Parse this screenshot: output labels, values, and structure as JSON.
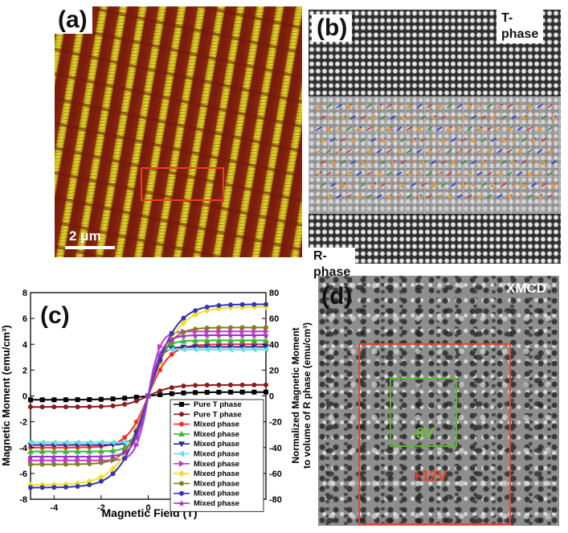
{
  "panel_a": {
    "label": "(a)",
    "scale_bar": "2 μm"
  },
  "panel_b": {
    "label": "(b)",
    "top_tag": "T-phase",
    "bottom_tag": "R-phase"
  },
  "panel_c": {
    "label": "(c)",
    "chart_data": {
      "type": "line",
      "xlabel": "Magnetic Field (T)",
      "ylabel": "Magnetic Moment (emu/cm³)",
      "y2label_line1": "Normalized Magnetic Moment",
      "y2label_line2": "to volume of R phase (emu/cm³)",
      "xlim": [
        -5,
        5
      ],
      "ylim": [
        -8,
        8
      ],
      "y2lim": [
        -80,
        80
      ],
      "x_ticks": [
        "-4",
        "-2",
        "0"
      ],
      "y_ticks": [
        "-8",
        "-6",
        "-4",
        "-2",
        "0",
        "2",
        "4",
        "6",
        "8"
      ],
      "y2_ticks": [
        "-80",
        "-60",
        "-40",
        "-20",
        "0",
        "20",
        "40",
        "60",
        "80"
      ],
      "series": [
        {
          "name": "Pure T phase",
          "color": "#000000",
          "marker": "square",
          "axis": "left",
          "Ms": 0.3,
          "H0": 1.5
        },
        {
          "name": "Pure T phase",
          "color": "#8b1a1a",
          "marker": "circle",
          "axis": "left",
          "Ms": 0.85,
          "H0": 1.0
        },
        {
          "name": "Mixed phase",
          "color": "#ff2a2a",
          "marker": "circle",
          "axis": "right",
          "Ms": 40,
          "H0": 0.9
        },
        {
          "name": "Mixed phase",
          "color": "#33bb33",
          "marker": "triangle-up",
          "axis": "right",
          "Ms": 43,
          "H0": 0.6
        },
        {
          "name": "Mixed phase",
          "color": "#2a2a9a",
          "marker": "triangle-down",
          "axis": "right",
          "Ms": 38,
          "H0": 0.5
        },
        {
          "name": "Mixed phase",
          "color": "#66dddd",
          "marker": "triangle-left",
          "axis": "right",
          "Ms": 36,
          "H0": 0.3
        },
        {
          "name": "Mixed phase",
          "color": "#cc33cc",
          "marker": "triangle-right",
          "axis": "right",
          "Ms": 50,
          "H0": 0.5
        },
        {
          "name": "Mixed phase",
          "color": "#f0e020",
          "marker": "diamond",
          "axis": "right",
          "Ms": 69,
          "H0": 1.3
        },
        {
          "name": "Mixed phase",
          "color": "#808020",
          "marker": "circle",
          "axis": "right",
          "Ms": 53,
          "H0": 0.9
        },
        {
          "name": "Mixed phase",
          "color": "#3333bb",
          "marker": "circle",
          "axis": "right",
          "Ms": 71,
          "H0": 1.2
        },
        {
          "name": "Mixed phase",
          "color": "#9933cc",
          "marker": "star",
          "axis": "right",
          "Ms": 47,
          "H0": 0.6
        }
      ]
    }
  },
  "panel_d": {
    "label": "(d)",
    "tag": "XMCD",
    "inner_box_text": "-8V",
    "outer_box_text": "+12V"
  }
}
